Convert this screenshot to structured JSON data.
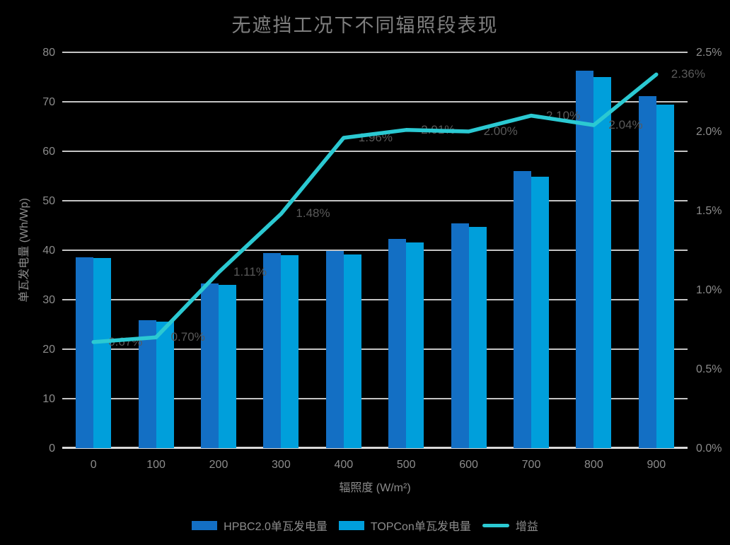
{
  "title": "无遮挡工况下不同辐照段表现",
  "chart_data": {
    "type": "bar",
    "subtype": "combo-bar-line-dual-axis",
    "categories": [
      "0",
      "100",
      "200",
      "300",
      "400",
      "500",
      "600",
      "700",
      "800",
      "900"
    ],
    "xlabel": "辐照度 (W/m²)",
    "ylabel": "单瓦发电量 (Wh/Wp)",
    "grid": true,
    "legend_position": "bottom",
    "left_axis": {
      "min": 0,
      "max": 80,
      "tick_labels": [
        "0",
        "10",
        "20",
        "30",
        "40",
        "50",
        "60",
        "70",
        "80"
      ]
    },
    "right_axis": {
      "min": 0,
      "max": 2.5,
      "tick_labels": [
        "0.0%",
        "0.5%",
        "1.0%",
        "1.5%",
        "2.0%",
        "2.5%"
      ]
    },
    "series": [
      {
        "name": "HPBC2.0单瓦发电量",
        "type": "bar",
        "axis": "left",
        "color": "#136FC4",
        "values": [
          38.6,
          25.8,
          33.3,
          39.5,
          39.9,
          42.3,
          45.4,
          56.0,
          76.3,
          71.1
        ]
      },
      {
        "name": "TOPCon单瓦发电量",
        "type": "bar",
        "axis": "left",
        "color": "#009FDB",
        "values": [
          38.4,
          25.6,
          33.0,
          39.0,
          39.1,
          41.6,
          44.7,
          54.9,
          75.0,
          69.4
        ]
      },
      {
        "name": "增益",
        "type": "line",
        "axis": "right",
        "color": "#2BC9D2",
        "values": [
          0.67,
          0.7,
          1.11,
          1.48,
          1.96,
          2.01,
          2.0,
          2.1,
          2.04,
          2.36
        ],
        "data_labels": [
          "0.67%",
          "0.70%",
          "1.11%",
          "1.48%",
          "1.96%",
          "2.01%",
          "2.00%",
          "2.10%",
          "2.04%",
          "2.36%"
        ]
      }
    ]
  },
  "colors": {
    "background": "#000000",
    "gridline": "#c4c4c4",
    "axis_line": "#d9d9d9",
    "title_text": "#7f7f7f",
    "axis_text": "#8c8c8c",
    "data_label_text": "#595959",
    "legend_text": "#8c8c8c"
  }
}
